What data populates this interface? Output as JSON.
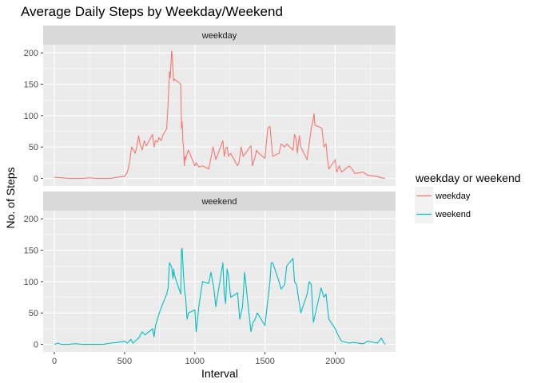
{
  "chart_data": {
    "type": "line",
    "title": "Average Daily Steps by Weekday/Weekend",
    "xlabel": "Interval",
    "ylabel": "No. of Steps",
    "xlim": [
      -80,
      2430
    ],
    "ylim": [
      -12,
      213
    ],
    "x_ticks": [
      0,
      500,
      1000,
      1500,
      2000
    ],
    "y_ticks": [
      0,
      50,
      100,
      150,
      200
    ],
    "grid": true,
    "legend": {
      "title": "weekday or weekend",
      "position": "right",
      "entries": [
        "weekday",
        "weekend"
      ]
    },
    "panels": [
      {
        "strip": "weekday",
        "series": [
          {
            "name": "weekday",
            "color": "#F8766D",
            "x": [
              0,
              50,
              100,
              150,
              200,
              250,
              300,
              350,
              400,
              450,
              500,
              520,
              535,
              550,
              565,
              575,
              585,
              600,
              610,
              625,
              640,
              655,
              700,
              710,
              720,
              735,
              745,
              760,
              775,
              790,
              800,
              810,
              820,
              825,
              830,
              835,
              840,
              845,
              850,
              855,
              900,
              905,
              910,
              915,
              920,
              925,
              930,
              935,
              945,
              955,
              1000,
              1010,
              1030,
              1055,
              1100,
              1130,
              1150,
              1200,
              1210,
              1220,
              1230,
              1240,
              1255,
              1305,
              1315,
              1330,
              1345,
              1400,
              1410,
              1425,
              1440,
              1455,
              1500,
              1520,
              1535,
              1545,
              1550,
              1555,
              1600,
              1615,
              1640,
              1655,
              1700,
              1710,
              1720,
              1730,
              1745,
              1755,
              1800,
              1815,
              1830,
              1840,
              1850,
              1855,
              1905,
              1920,
              1935,
              1945,
              1955,
              2000,
              2010,
              2030,
              2045,
              2100,
              2120,
              2140,
              2200,
              2230,
              2300,
              2330,
              2355
            ],
            "y": [
              2,
              1,
              0,
              0,
              0,
              1,
              0,
              0,
              0,
              2,
              3,
              10,
              25,
              50,
              45,
              40,
              48,
              68,
              55,
              45,
              60,
              52,
              70,
              50,
              60,
              58,
              65,
              60,
              70,
              75,
              80,
              120,
              170,
              160,
              180,
              203,
              195,
              170,
              155,
              158,
              150,
              80,
              90,
              60,
              50,
              20,
              35,
              30,
              40,
              45,
              20,
              25,
              18,
              20,
              15,
              50,
              30,
              60,
              35,
              48,
              50,
              35,
              40,
              20,
              25,
              50,
              35,
              52,
              20,
              30,
              45,
              40,
              32,
              80,
              83,
              60,
              45,
              35,
              40,
              55,
              50,
              55,
              45,
              70,
              65,
              40,
              68,
              50,
              30,
              55,
              80,
              90,
              103,
              85,
              80,
              50,
              55,
              30,
              15,
              30,
              10,
              20,
              10,
              20,
              15,
              8,
              10,
              5,
              3,
              1,
              0
            ]
          }
        ]
      },
      {
        "strip": "weekend",
        "series": [
          {
            "name": "weekend",
            "color": "#00BFC4",
            "x": [
              0,
              25,
              50,
              100,
              150,
              200,
              250,
              300,
              350,
              400,
              450,
              500,
              520,
              545,
              560,
              600,
              625,
              645,
              700,
              710,
              720,
              740,
              755,
              800,
              810,
              820,
              835,
              845,
              850,
              855,
              900,
              905,
              910,
              915,
              925,
              935,
              945,
              955,
              1000,
              1010,
              1030,
              1055,
              1100,
              1115,
              1135,
              1150,
              1200,
              1210,
              1220,
              1230,
              1240,
              1255,
              1305,
              1320,
              1340,
              1355,
              1400,
              1415,
              1430,
              1445,
              1500,
              1520,
              1535,
              1545,
              1555,
              1600,
              1615,
              1640,
              1655,
              1700,
              1710,
              1725,
              1745,
              1755,
              1800,
              1815,
              1830,
              1845,
              1900,
              1920,
              1935,
              1955,
              2000,
              2020,
              2045,
              2100,
              2130,
              2200,
              2230,
              2300,
              2330,
              2345,
              2355
            ],
            "y": [
              0,
              2,
              0,
              0,
              1,
              0,
              0,
              0,
              0,
              2,
              3,
              5,
              2,
              8,
              2,
              10,
              20,
              15,
              25,
              12,
              30,
              45,
              55,
              80,
              90,
              130,
              123,
              105,
              120,
              110,
              80,
              150,
              153,
              130,
              90,
              75,
              40,
              50,
              55,
              20,
              62,
              100,
              97,
              115,
              90,
              60,
              130,
              80,
              65,
              120,
              110,
              75,
              82,
              40,
              60,
              115,
              20,
              35,
              40,
              50,
              30,
              70,
              100,
              130,
              130,
              100,
              88,
              95,
              125,
              137,
              100,
              95,
              65,
              50,
              80,
              100,
              95,
              35,
              90,
              75,
              80,
              40,
              25,
              15,
              5,
              2,
              3,
              1,
              5,
              2,
              10,
              3,
              0
            ]
          }
        ]
      }
    ]
  }
}
